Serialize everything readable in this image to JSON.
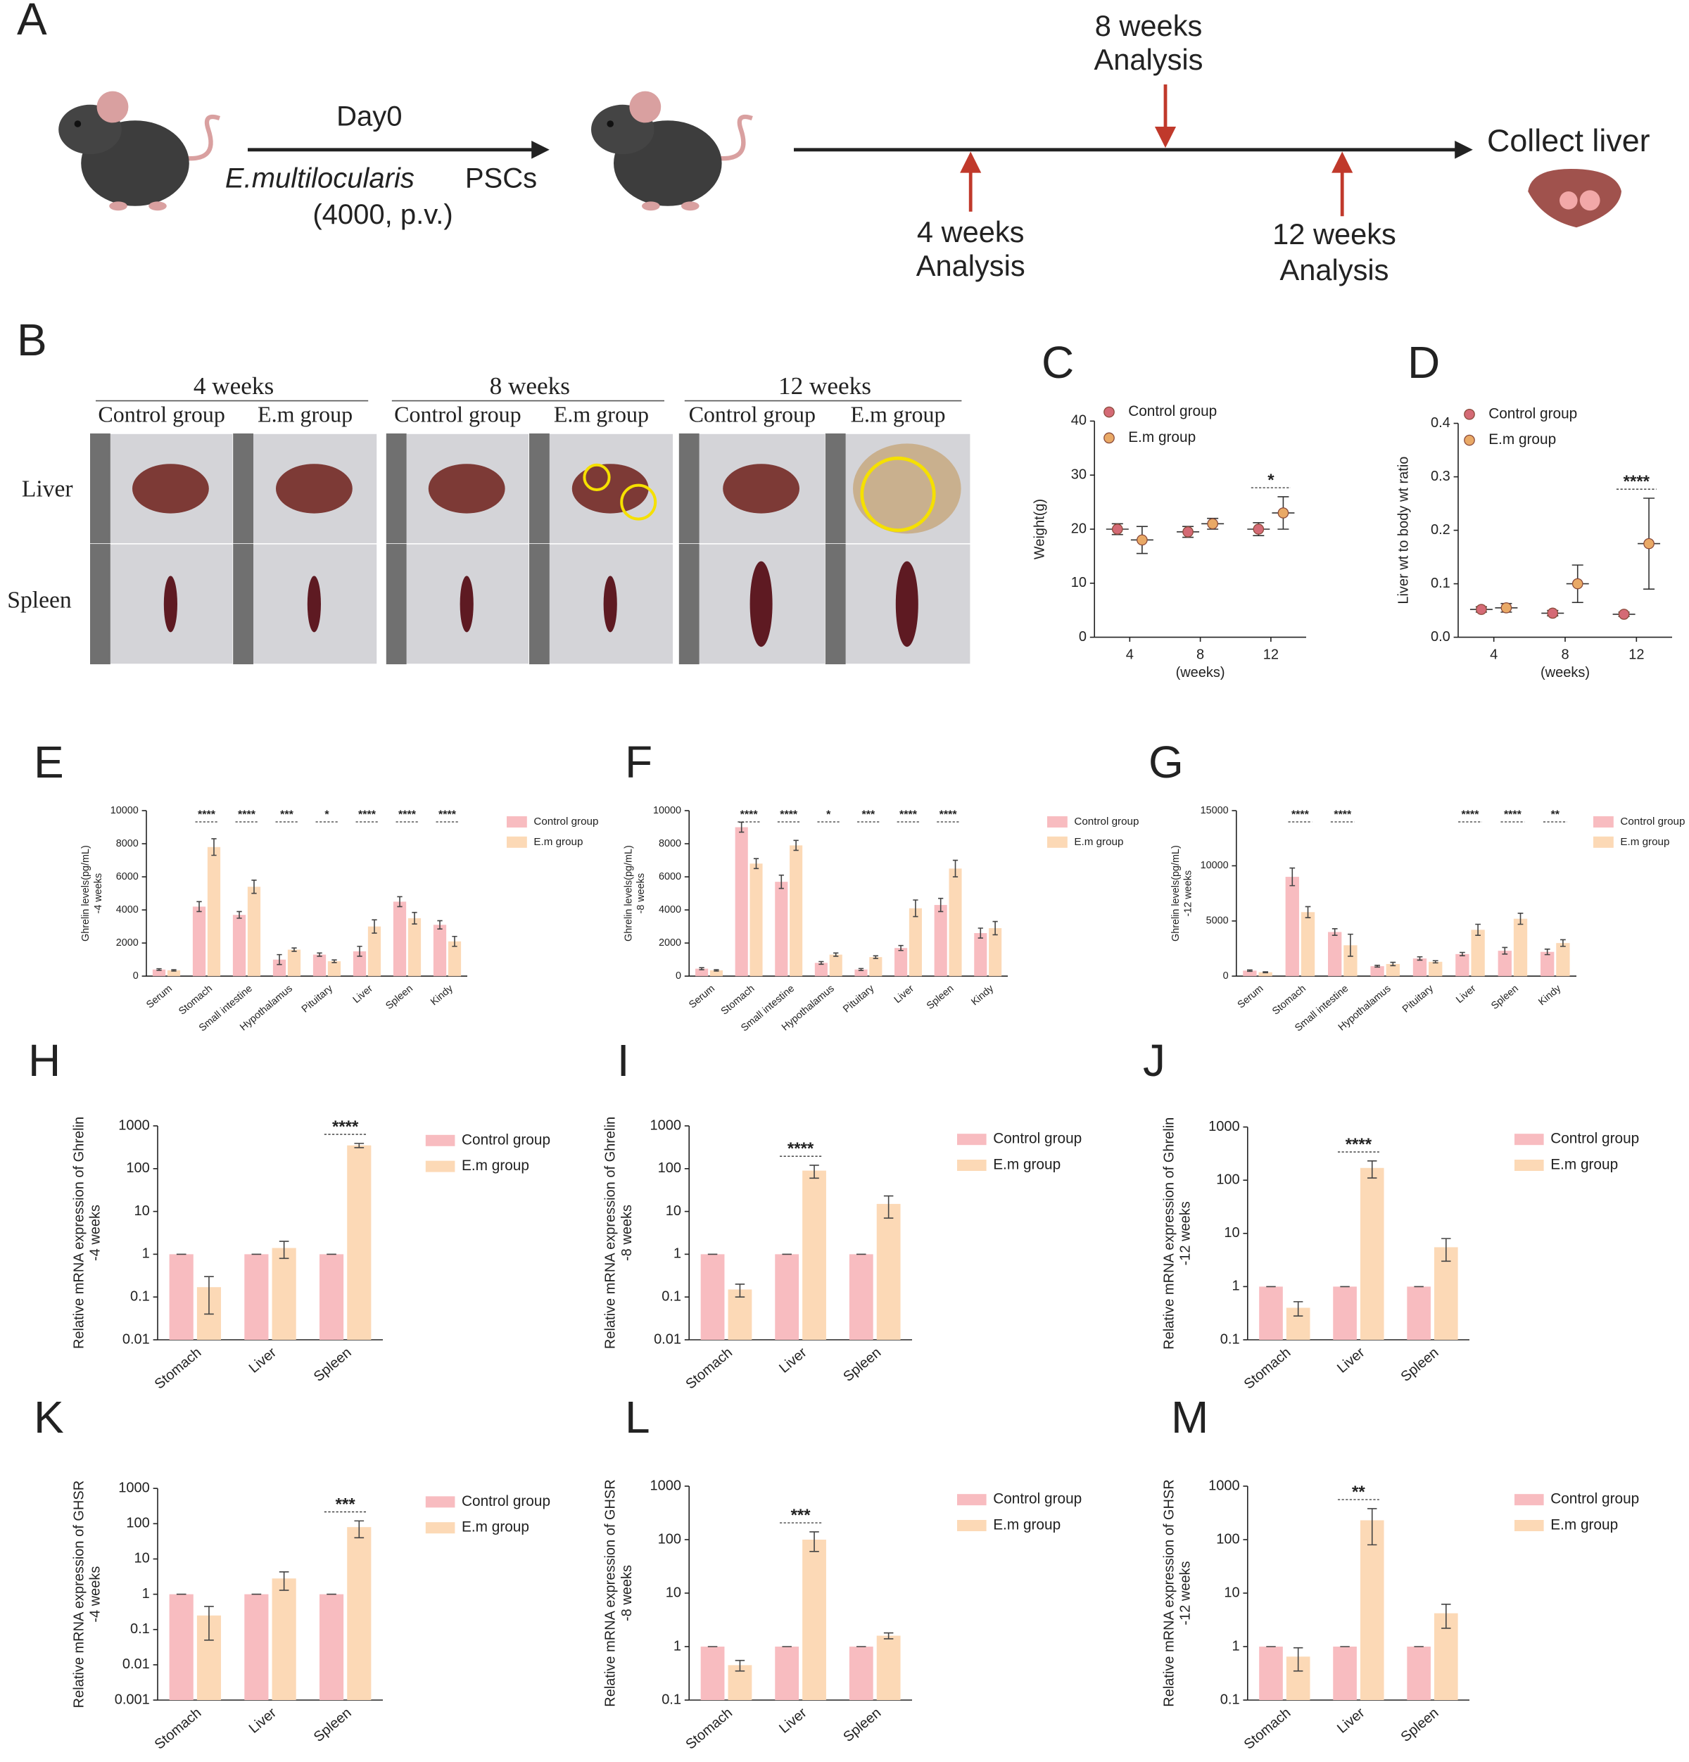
{
  "panel_a": {
    "label": "A",
    "day": "Day0",
    "species": "E.multilocularis",
    "material": "PSCs",
    "dose": "(4000, p.v.)",
    "analyses": [
      {
        "time": "4 weeks",
        "text": "Analysis"
      },
      {
        "time": "8 weeks",
        "text": "Analysis"
      },
      {
        "time": "12 weeks",
        "text": "Analysis"
      }
    ],
    "end": "Collect liver"
  },
  "panel_b": {
    "label": "B",
    "timepoints": [
      "4 weeks",
      "8 weeks",
      "12 weeks"
    ],
    "groups": [
      "Control group",
      "E.m group"
    ],
    "organs": [
      "Liver",
      "Spleen"
    ]
  },
  "chart_data": [
    {
      "label": "C",
      "type": "scatter",
      "ylabel": [
        "Weight(g)"
      ],
      "xlabel": "(weeks)",
      "categories": [
        "4",
        "8",
        "12"
      ],
      "ylim": [
        0,
        40
      ],
      "yticks": [
        0,
        10,
        20,
        30,
        40
      ],
      "series": [
        {
          "name": "Control group",
          "color": "#d46a75",
          "values": [
            20,
            19.5,
            20
          ],
          "errors": [
            1,
            1,
            1.2
          ]
        },
        {
          "name": "E.m group",
          "color": "#e9a966",
          "values": [
            18,
            21,
            23
          ],
          "errors": [
            2.5,
            1,
            3
          ]
        }
      ],
      "significance": [
        null,
        null,
        "*"
      ]
    },
    {
      "label": "D",
      "type": "scatter",
      "ylabel": [
        "Liver wt to body wt ratio"
      ],
      "xlabel": "(weeks)",
      "categories": [
        "4",
        "8",
        "12"
      ],
      "ylim": [
        0,
        0.4
      ],
      "yticks": [
        {
          "value": 0,
          "label": "0.0"
        },
        0.1,
        0.2,
        0.3,
        0.4
      ],
      "series": [
        {
          "name": "Control group",
          "color": "#d46a75",
          "values": [
            0.052,
            0.045,
            0.043
          ],
          "errors": [
            0.005,
            0.005,
            0.004
          ]
        },
        {
          "name": "E.m group",
          "color": "#e9a966",
          "values": [
            0.055,
            0.1,
            0.175
          ],
          "errors": [
            0.008,
            0.035,
            0.085
          ]
        }
      ],
      "significance": [
        null,
        null,
        "****"
      ]
    },
    {
      "label": "E",
      "type": "bar",
      "ylabel": [
        "Ghrelin levels(pg/mL)",
        "-4 weeks"
      ],
      "categories": [
        "Serum",
        "Stomach",
        "Small intestine",
        "Hypothalamus",
        "Pituitary",
        "Liver",
        "Spleen",
        "Kindy"
      ],
      "ylim": [
        0,
        10000
      ],
      "yticks": [
        0,
        2000,
        4000,
        6000,
        8000,
        10000
      ],
      "series": [
        {
          "name": "Control group",
          "color": "#f8bcc0",
          "values": [
            400,
            4200,
            3700,
            1000,
            1300,
            1500,
            4500,
            3100
          ],
          "errors": [
            50,
            300,
            200,
            300,
            100,
            300,
            300,
            250
          ]
        },
        {
          "name": "E.m group",
          "color": "#fcd9b6",
          "values": [
            350,
            7800,
            5400,
            1600,
            900,
            3000,
            3500,
            2100
          ],
          "errors": [
            40,
            500,
            400,
            100,
            80,
            400,
            350,
            300
          ]
        }
      ],
      "significance": [
        null,
        "****",
        "****",
        "***",
        "*",
        "****",
        "****",
        "****"
      ]
    },
    {
      "label": "F",
      "type": "bar",
      "ylabel": [
        "Ghrelin levels(pg/mL)",
        "-8 weeks"
      ],
      "categories": [
        "Serum",
        "Stomach",
        "Small intestine",
        "Hypothalamus",
        "Pituitary",
        "Liver",
        "Spleen",
        "Kindy"
      ],
      "ylim": [
        0,
        10000
      ],
      "yticks": [
        0,
        2000,
        4000,
        6000,
        8000,
        10000
      ],
      "series": [
        {
          "name": "Control group",
          "color": "#f8bcc0",
          "values": [
            450,
            9000,
            5700,
            800,
            400,
            1700,
            4300,
            2600
          ],
          "errors": [
            60,
            300,
            400,
            80,
            60,
            150,
            400,
            300
          ]
        },
        {
          "name": "E.m group",
          "color": "#fcd9b6",
          "values": [
            350,
            6800,
            7900,
            1300,
            1150,
            4100,
            6500,
            2900
          ],
          "errors": [
            40,
            300,
            300,
            100,
            80,
            500,
            500,
            400
          ]
        }
      ],
      "significance": [
        null,
        "****",
        "****",
        "*",
        "***",
        "****",
        "****",
        null
      ]
    },
    {
      "label": "G",
      "type": "bar",
      "ylabel": [
        "Ghrelin levels(pg/mL)",
        "-12 weeks"
      ],
      "categories": [
        "Serum",
        "Stomach",
        "Small intestine",
        "Hypothalamus",
        "Pituitary",
        "Liver",
        "Spleen",
        "Kindy"
      ],
      "ylim": [
        0,
        15000
      ],
      "yticks": [
        0,
        5000,
        10000,
        15000
      ],
      "series": [
        {
          "name": "Control group",
          "color": "#f8bcc0",
          "values": [
            500,
            9000,
            4000,
            900,
            1600,
            2000,
            2300,
            2200
          ],
          "errors": [
            60,
            800,
            300,
            80,
            150,
            150,
            300,
            250
          ]
        },
        {
          "name": "E.m group",
          "color": "#fcd9b6",
          "values": [
            350,
            5800,
            2800,
            1100,
            1300,
            4200,
            5200,
            3000
          ],
          "errors": [
            40,
            500,
            1000,
            150,
            100,
            500,
            500,
            300
          ]
        }
      ],
      "significance": [
        null,
        "****",
        "****",
        null,
        null,
        "****",
        "****",
        "**"
      ]
    },
    {
      "label": "H",
      "type": "bar",
      "log": true,
      "ylabel": [
        "Relative mRNA expression of Ghrelin",
        "-4 weeks"
      ],
      "categories": [
        "Stomach",
        "Liver",
        "Spleen"
      ],
      "ylim": [
        0.01,
        1000
      ],
      "yticks": [
        0.01,
        0.1,
        1,
        10,
        100,
        1000
      ],
      "series": [
        {
          "name": "Control group",
          "color": "#f8bcc0",
          "values": [
            1,
            1,
            1
          ],
          "errors": [
            0,
            0,
            0
          ]
        },
        {
          "name": "E.m group",
          "color": "#fcd9b6",
          "values": [
            0.17,
            1.4,
            350
          ],
          "errors": [
            0.13,
            0.6,
            40
          ]
        }
      ],
      "significance": [
        null,
        null,
        "****"
      ]
    },
    {
      "label": "I",
      "type": "bar",
      "log": true,
      "ylabel": [
        "Relative mRNA expression of Ghrelin",
        "-8 weeks"
      ],
      "categories": [
        "Stomach",
        "Liver",
        "Spleen"
      ],
      "ylim": [
        0.01,
        1000
      ],
      "yticks": [
        0.01,
        0.1,
        1,
        10,
        100,
        1000
      ],
      "series": [
        {
          "name": "Control group",
          "color": "#f8bcc0",
          "values": [
            1,
            1,
            1
          ],
          "errors": [
            0,
            0,
            0
          ]
        },
        {
          "name": "E.m group",
          "color": "#fcd9b6",
          "values": [
            0.15,
            90,
            15
          ],
          "errors": [
            0.05,
            30,
            8
          ]
        }
      ],
      "significance": [
        null,
        "****",
        null
      ]
    },
    {
      "label": "J",
      "type": "bar",
      "log": true,
      "ylabel": [
        "Relative mRNA expression of Ghrelin",
        "-12 weeks"
      ],
      "categories": [
        "Stomach",
        "Liver",
        "Spleen"
      ],
      "ylim": [
        0.1,
        1000
      ],
      "yticks": [
        0.1,
        1,
        10,
        100,
        1000
      ],
      "series": [
        {
          "name": "Control group",
          "color": "#f8bcc0",
          "values": [
            1,
            1,
            1
          ],
          "errors": [
            0,
            0,
            0
          ]
        },
        {
          "name": "E.m group",
          "color": "#fcd9b6",
          "values": [
            0.4,
            170,
            5.5
          ],
          "errors": [
            0.12,
            60,
            2.5
          ]
        }
      ],
      "significance": [
        null,
        "****",
        null
      ]
    },
    {
      "label": "K",
      "type": "bar",
      "log": true,
      "ylabel": [
        "Relative mRNA expression of GHSR",
        "-4 weeks"
      ],
      "categories": [
        "Stomach",
        "Liver",
        "Spleen"
      ],
      "ylim": [
        0.001,
        1000
      ],
      "yticks": [
        0.001,
        0.01,
        0.1,
        1,
        10,
        100,
        1000
      ],
      "series": [
        {
          "name": "Control group",
          "color": "#f8bcc0",
          "values": [
            1,
            1,
            1
          ],
          "errors": [
            0,
            0,
            0
          ]
        },
        {
          "name": "E.m group",
          "color": "#fcd9b6",
          "values": [
            0.25,
            2.8,
            80
          ],
          "errors": [
            0.2,
            1.5,
            40
          ]
        }
      ],
      "significance": [
        null,
        null,
        "***"
      ]
    },
    {
      "label": "L",
      "type": "bar",
      "log": true,
      "ylabel": [
        "Relative mRNA expression of GHSR",
        "-8 weeks"
      ],
      "categories": [
        "Stomach",
        "Liver",
        "Spleen"
      ],
      "ylim": [
        0.1,
        1000
      ],
      "yticks": [
        0.1,
        1,
        10,
        100,
        1000
      ],
      "series": [
        {
          "name": "Control group",
          "color": "#f8bcc0",
          "values": [
            1,
            1,
            1
          ],
          "errors": [
            0,
            0,
            0
          ]
        },
        {
          "name": "E.m group",
          "color": "#fcd9b6",
          "values": [
            0.45,
            100,
            1.6
          ],
          "errors": [
            0.1,
            40,
            0.2
          ]
        }
      ],
      "significance": [
        null,
        "***",
        null
      ]
    },
    {
      "label": "M",
      "type": "bar",
      "log": true,
      "ylabel": [
        "Relative mRNA expression of GHSR",
        "-12 weeks"
      ],
      "categories": [
        "Stomach",
        "Liver",
        "Spleen"
      ],
      "ylim": [
        0.1,
        1000
      ],
      "yticks": [
        0.1,
        1,
        10,
        100,
        1000
      ],
      "series": [
        {
          "name": "Control group",
          "color": "#f8bcc0",
          "values": [
            1,
            1,
            1
          ],
          "errors": [
            0,
            0,
            0
          ]
        },
        {
          "name": "E.m group",
          "color": "#fcd9b6",
          "values": [
            0.65,
            230,
            4.2
          ],
          "errors": [
            0.3,
            150,
            2
          ]
        }
      ],
      "significance": [
        null,
        "**",
        null
      ]
    }
  ]
}
